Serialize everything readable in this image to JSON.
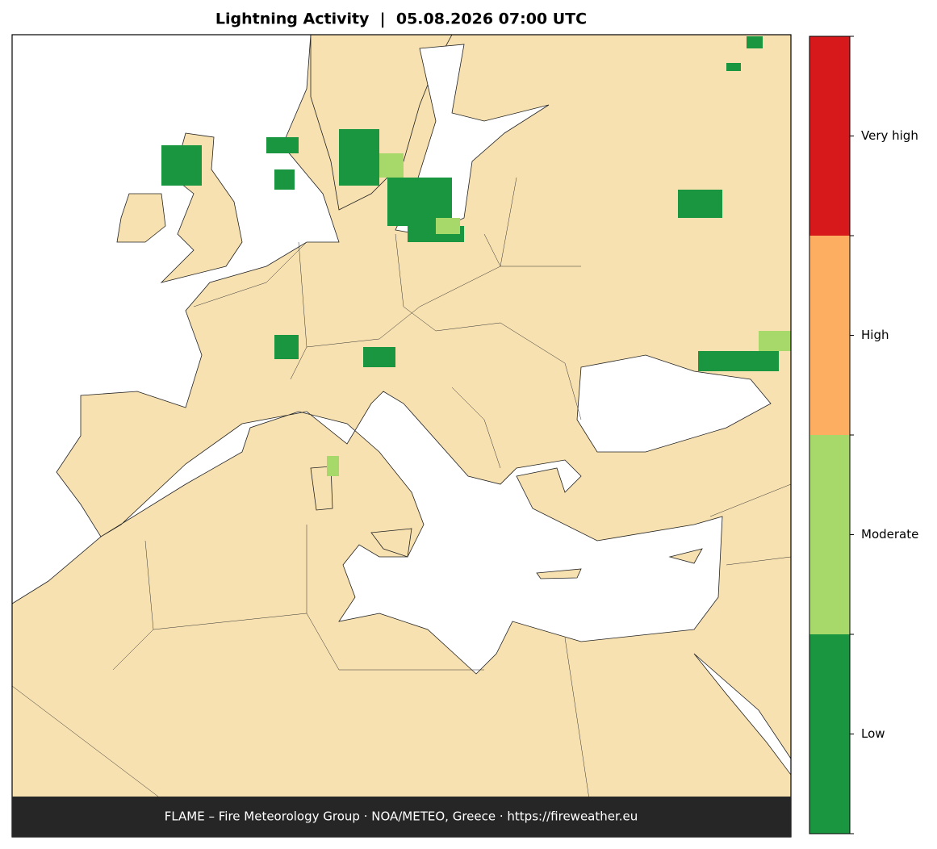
{
  "title": "Lightning Activity  |  05.08.2026 07:00 UTC",
  "footer": "FLAME – Fire Meteorology Group · NOA/METEO, Greece · https://fireweather.eu",
  "legend": {
    "levels": [
      {
        "label": "Low",
        "color": "#1a9641"
      },
      {
        "label": "Moderate",
        "color": "#a6d96a"
      },
      {
        "label": "High",
        "color": "#fdae61"
      },
      {
        "label": "Very high",
        "color": "#d7191c"
      }
    ]
  }
}
